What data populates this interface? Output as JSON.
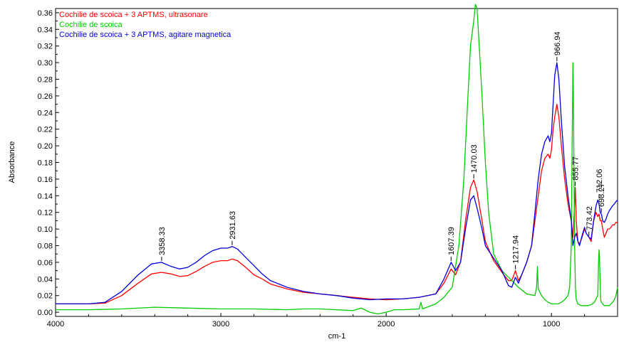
{
  "chart_data": {
    "type": "line",
    "xlabel": "cm-1",
    "ylabel": "Absorbance",
    "xlim": [
      4000,
      600
    ],
    "ylim": [
      -0.005,
      0.365
    ],
    "x_reversed": true,
    "x_ticks": [
      4000,
      3000,
      2000,
      1000
    ],
    "x_tick_labels": [
      "4000",
      "3000",
      "2000",
      "1000"
    ],
    "y_ticks": [
      0.0,
      0.02,
      0.04,
      0.06,
      0.08,
      0.1,
      0.12,
      0.14,
      0.16,
      0.18,
      0.2,
      0.22,
      0.24,
      0.26,
      0.28,
      0.3,
      0.32,
      0.34,
      0.36
    ],
    "y_tick_labels": [
      "0.00",
      "0.02",
      "0.04",
      "0.06",
      "0.08",
      "0.10",
      "0.12",
      "0.14",
      "0.16",
      "0.18",
      "0.20",
      "0.22",
      "0.24",
      "0.26",
      "0.28",
      "0.30",
      "0.32",
      "0.34",
      "0.36"
    ],
    "grid": false,
    "legend_position": "top-left",
    "series": [
      {
        "name": "Cochilie de scoica + 3 APTMS, ultrasonare",
        "color": "#ff0000",
        "points": [
          [
            4000,
            0.01
          ],
          [
            3800,
            0.01
          ],
          [
            3700,
            0.011
          ],
          [
            3600,
            0.02
          ],
          [
            3500,
            0.035
          ],
          [
            3420,
            0.046
          ],
          [
            3360,
            0.048
          ],
          [
            3300,
            0.046
          ],
          [
            3250,
            0.043
          ],
          [
            3200,
            0.044
          ],
          [
            3150,
            0.049
          ],
          [
            3100,
            0.055
          ],
          [
            3050,
            0.06
          ],
          [
            3000,
            0.062
          ],
          [
            2960,
            0.062
          ],
          [
            2931,
            0.064
          ],
          [
            2900,
            0.062
          ],
          [
            2850,
            0.054
          ],
          [
            2800,
            0.045
          ],
          [
            2750,
            0.04
          ],
          [
            2700,
            0.034
          ],
          [
            2600,
            0.028
          ],
          [
            2500,
            0.024
          ],
          [
            2400,
            0.022
          ],
          [
            2300,
            0.02
          ],
          [
            2200,
            0.018
          ],
          [
            2100,
            0.016
          ],
          [
            2000,
            0.015
          ],
          [
            1900,
            0.016
          ],
          [
            1800,
            0.018
          ],
          [
            1750,
            0.02
          ],
          [
            1700,
            0.022
          ],
          [
            1650,
            0.035
          ],
          [
            1607,
            0.052
          ],
          [
            1580,
            0.045
          ],
          [
            1550,
            0.06
          ],
          [
            1520,
            0.11
          ],
          [
            1490,
            0.15
          ],
          [
            1470,
            0.159
          ],
          [
            1450,
            0.145
          ],
          [
            1420,
            0.11
          ],
          [
            1400,
            0.085
          ],
          [
            1350,
            0.062
          ],
          [
            1300,
            0.048
          ],
          [
            1260,
            0.038
          ],
          [
            1240,
            0.038
          ],
          [
            1218,
            0.05
          ],
          [
            1200,
            0.038
          ],
          [
            1180,
            0.045
          ],
          [
            1150,
            0.06
          ],
          [
            1120,
            0.08
          ],
          [
            1100,
            0.11
          ],
          [
            1080,
            0.14
          ],
          [
            1060,
            0.17
          ],
          [
            1040,
            0.185
          ],
          [
            1020,
            0.19
          ],
          [
            1010,
            0.185
          ],
          [
            1000,
            0.195
          ],
          [
            990,
            0.22
          ],
          [
            980,
            0.235
          ],
          [
            967,
            0.25
          ],
          [
            955,
            0.235
          ],
          [
            940,
            0.2
          ],
          [
            920,
            0.16
          ],
          [
            900,
            0.13
          ],
          [
            880,
            0.11
          ],
          [
            870,
            0.09
          ],
          [
            860,
            0.13
          ],
          [
            856,
            0.15
          ],
          [
            850,
            0.11
          ],
          [
            840,
            0.085
          ],
          [
            830,
            0.082
          ],
          [
            815,
            0.09
          ],
          [
            800,
            0.1
          ],
          [
            790,
            0.095
          ],
          [
            773,
            0.09
          ],
          [
            760,
            0.085
          ],
          [
            745,
            0.11
          ],
          [
            730,
            0.12
          ],
          [
            720,
            0.115
          ],
          [
            712,
            0.118
          ],
          [
            705,
            0.11
          ],
          [
            698,
            0.11
          ],
          [
            690,
            0.1
          ],
          [
            680,
            0.09
          ],
          [
            670,
            0.095
          ],
          [
            660,
            0.1
          ],
          [
            650,
            0.1
          ],
          [
            640,
            0.102
          ],
          [
            630,
            0.105
          ],
          [
            620,
            0.105
          ],
          [
            610,
            0.108
          ],
          [
            600,
            0.108
          ]
        ]
      },
      {
        "name": "Cochilie de scoica",
        "color": "#00cc00",
        "points": [
          [
            4000,
            0.003
          ],
          [
            3800,
            0.003
          ],
          [
            3600,
            0.004
          ],
          [
            3400,
            0.006
          ],
          [
            3200,
            0.005
          ],
          [
            3000,
            0.004
          ],
          [
            2800,
            0.004
          ],
          [
            2600,
            0.003
          ],
          [
            2500,
            0.004
          ],
          [
            2400,
            0.004
          ],
          [
            2200,
            0.002
          ],
          [
            2150,
            0.005
          ],
          [
            2100,
            0.0
          ],
          [
            2050,
            -0.002
          ],
          [
            2000,
            0.0
          ],
          [
            1950,
            0.003
          ],
          [
            1900,
            0.003
          ],
          [
            1800,
            0.004
          ],
          [
            1790,
            0.012
          ],
          [
            1780,
            0.004
          ],
          [
            1700,
            0.01
          ],
          [
            1650,
            0.018
          ],
          [
            1600,
            0.03
          ],
          [
            1560,
            0.08
          ],
          [
            1530,
            0.16
          ],
          [
            1510,
            0.24
          ],
          [
            1490,
            0.32
          ],
          [
            1470,
            0.35
          ],
          [
            1460,
            0.37
          ],
          [
            1450,
            0.365
          ],
          [
            1440,
            0.33
          ],
          [
            1420,
            0.26
          ],
          [
            1400,
            0.18
          ],
          [
            1380,
            0.12
          ],
          [
            1350,
            0.07
          ],
          [
            1300,
            0.05
          ],
          [
            1250,
            0.04
          ],
          [
            1200,
            0.03
          ],
          [
            1150,
            0.022
          ],
          [
            1100,
            0.02
          ],
          [
            1090,
            0.03
          ],
          [
            1085,
            0.055
          ],
          [
            1080,
            0.028
          ],
          [
            1060,
            0.02
          ],
          [
            1040,
            0.015
          ],
          [
            1020,
            0.012
          ],
          [
            1000,
            0.01
          ],
          [
            980,
            0.01
          ],
          [
            960,
            0.01
          ],
          [
            940,
            0.012
          ],
          [
            920,
            0.015
          ],
          [
            900,
            0.02
          ],
          [
            890,
            0.03
          ],
          [
            880,
            0.08
          ],
          [
            875,
            0.2
          ],
          [
            872,
            0.26
          ],
          [
            870,
            0.3
          ],
          [
            868,
            0.28
          ],
          [
            865,
            0.2
          ],
          [
            860,
            0.08
          ],
          [
            855,
            0.03
          ],
          [
            850,
            0.015
          ],
          [
            840,
            0.01
          ],
          [
            820,
            0.008
          ],
          [
            800,
            0.008
          ],
          [
            780,
            0.008
          ],
          [
            760,
            0.009
          ],
          [
            740,
            0.012
          ],
          [
            720,
            0.02
          ],
          [
            715,
            0.06
          ],
          [
            712,
            0.075
          ],
          [
            710,
            0.07
          ],
          [
            706,
            0.04
          ],
          [
            702,
            0.015
          ],
          [
            698,
            0.012
          ],
          [
            690,
            0.01
          ],
          [
            680,
            0.008
          ],
          [
            670,
            0.008
          ],
          [
            660,
            0.008
          ],
          [
            650,
            0.008
          ],
          [
            640,
            0.01
          ],
          [
            630,
            0.012
          ],
          [
            620,
            0.015
          ],
          [
            610,
            0.02
          ],
          [
            600,
            0.03
          ]
        ]
      },
      {
        "name": "Cochilie de scoica + 3 APTMS, agitare magnetica",
        "color": "#0000dd",
        "points": [
          [
            4000,
            0.01
          ],
          [
            3800,
            0.01
          ],
          [
            3700,
            0.012
          ],
          [
            3600,
            0.025
          ],
          [
            3500,
            0.045
          ],
          [
            3420,
            0.058
          ],
          [
            3360,
            0.06
          ],
          [
            3300,
            0.055
          ],
          [
            3250,
            0.052
          ],
          [
            3200,
            0.054
          ],
          [
            3150,
            0.06
          ],
          [
            3100,
            0.068
          ],
          [
            3050,
            0.074
          ],
          [
            3000,
            0.077
          ],
          [
            2960,
            0.077
          ],
          [
            2931,
            0.079
          ],
          [
            2900,
            0.076
          ],
          [
            2850,
            0.066
          ],
          [
            2800,
            0.056
          ],
          [
            2750,
            0.046
          ],
          [
            2700,
            0.038
          ],
          [
            2600,
            0.03
          ],
          [
            2500,
            0.025
          ],
          [
            2400,
            0.022
          ],
          [
            2300,
            0.02
          ],
          [
            2200,
            0.017
          ],
          [
            2100,
            0.015
          ],
          [
            2000,
            0.016
          ],
          [
            1900,
            0.016
          ],
          [
            1800,
            0.018
          ],
          [
            1750,
            0.02
          ],
          [
            1700,
            0.022
          ],
          [
            1650,
            0.04
          ],
          [
            1607,
            0.06
          ],
          [
            1580,
            0.05
          ],
          [
            1550,
            0.06
          ],
          [
            1520,
            0.1
          ],
          [
            1490,
            0.135
          ],
          [
            1470,
            0.14
          ],
          [
            1450,
            0.125
          ],
          [
            1420,
            0.1
          ],
          [
            1400,
            0.08
          ],
          [
            1350,
            0.065
          ],
          [
            1300,
            0.05
          ],
          [
            1260,
            0.032
          ],
          [
            1240,
            0.03
          ],
          [
            1218,
            0.042
          ],
          [
            1200,
            0.035
          ],
          [
            1180,
            0.045
          ],
          [
            1150,
            0.06
          ],
          [
            1120,
            0.08
          ],
          [
            1100,
            0.12
          ],
          [
            1080,
            0.16
          ],
          [
            1060,
            0.19
          ],
          [
            1040,
            0.205
          ],
          [
            1020,
            0.212
          ],
          [
            1010,
            0.205
          ],
          [
            1000,
            0.215
          ],
          [
            990,
            0.25
          ],
          [
            980,
            0.285
          ],
          [
            967,
            0.3
          ],
          [
            955,
            0.28
          ],
          [
            940,
            0.23
          ],
          [
            920,
            0.175
          ],
          [
            900,
            0.14
          ],
          [
            880,
            0.11
          ],
          [
            870,
            0.08
          ],
          [
            860,
            0.09
          ],
          [
            850,
            0.095
          ],
          [
            840,
            0.085
          ],
          [
            830,
            0.08
          ],
          [
            815,
            0.092
          ],
          [
            800,
            0.102
          ],
          [
            790,
            0.095
          ],
          [
            773,
            0.09
          ],
          [
            760,
            0.088
          ],
          [
            745,
            0.11
          ],
          [
            730,
            0.128
          ],
          [
            720,
            0.135
          ],
          [
            712,
            0.13
          ],
          [
            705,
            0.12
          ],
          [
            698,
            0.118
          ],
          [
            690,
            0.11
          ],
          [
            680,
            0.108
          ],
          [
            670,
            0.112
          ],
          [
            660,
            0.118
          ],
          [
            650,
            0.122
          ],
          [
            640,
            0.125
          ],
          [
            630,
            0.128
          ],
          [
            620,
            0.13
          ],
          [
            610,
            0.133
          ],
          [
            600,
            0.135
          ]
        ]
      }
    ],
    "peak_labels": [
      {
        "text": "3358.33",
        "x": 3358.33,
        "y": 0.06
      },
      {
        "text": "2931.63",
        "x": 2931.63,
        "y": 0.079
      },
      {
        "text": "1607.39",
        "x": 1607.39,
        "y": 0.06
      },
      {
        "text": "1470.03",
        "x": 1470.03,
        "y": 0.159
      },
      {
        "text": "1217.94",
        "x": 1217.94,
        "y": 0.05
      },
      {
        "text": "966.94",
        "x": 966.94,
        "y": 0.3
      },
      {
        "text": "855.77",
        "x": 855.77,
        "y": 0.15
      },
      {
        "text": "773.42",
        "x": 773.42,
        "y": 0.09
      },
      {
        "text": "712.06",
        "x": 712.06,
        "y": 0.135
      },
      {
        "text": "698.27",
        "x": 698.27,
        "y": 0.118
      }
    ]
  }
}
